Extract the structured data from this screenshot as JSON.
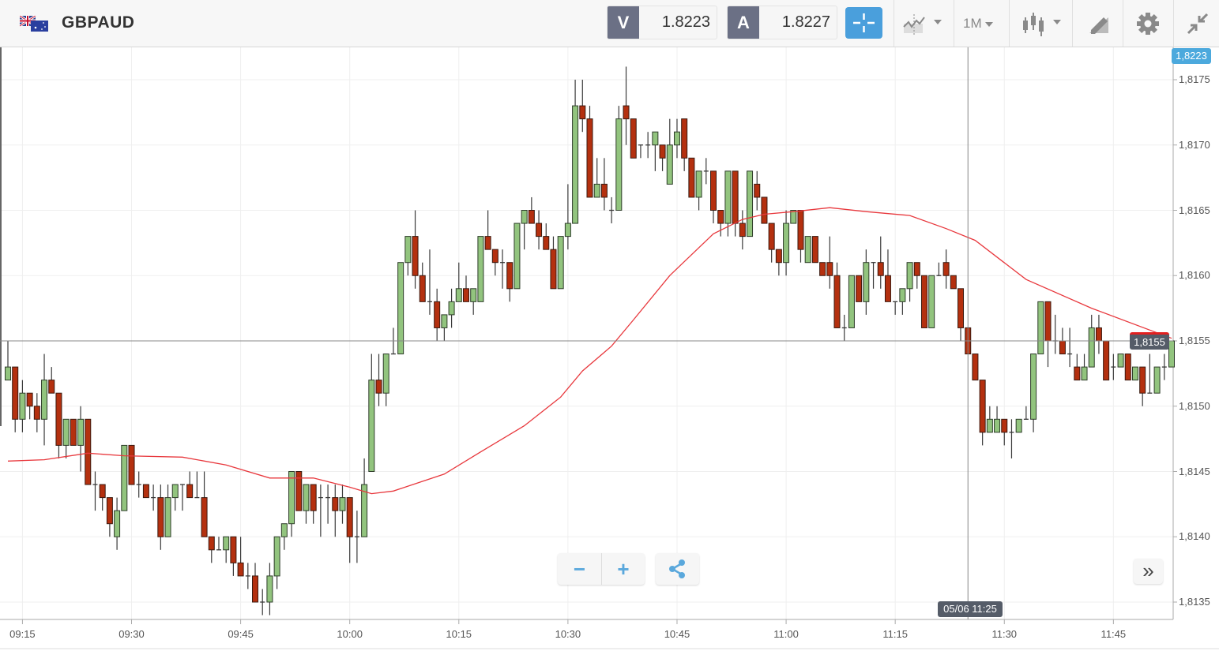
{
  "header": {
    "symbol": "GBPAUD",
    "sell_label": "V",
    "sell_price": "1.8223",
    "buy_label": "A",
    "buy_price": "1.8227",
    "timeframe": "1M",
    "icons": [
      "flag-gb-au-icon",
      "crosshair-icon",
      "indicators-icon",
      "timeframe-dropdown",
      "candlestick-type-icon",
      "drawing-tools-icon",
      "gear-icon",
      "collapse-icon"
    ]
  },
  "colors": {
    "up": "#92c47e",
    "down": "#b4300f",
    "ma": "#e8383d",
    "accent": "#4a9fdc",
    "tag_dark": "#555c68"
  },
  "overlay": {
    "top_price_tag": "1,8223",
    "current_price_tag": "1,8155",
    "crosshair_time_tag": "05/06 11:25",
    "zoom_out": "−",
    "zoom_in": "+",
    "share_icon": "share-icon",
    "scroll_right": "»"
  },
  "chart_data": {
    "type": "candlestick",
    "title": "GBPAUD",
    "interval": "1M",
    "first_candle_time": "09:13",
    "ylim": [
      1.81335,
      1.81795
    ],
    "y_ticks": [
      {
        "value": 1.8175,
        "label": "1,8175"
      },
      {
        "value": 1.817,
        "label": "1,8170"
      },
      {
        "value": 1.8165,
        "label": "1,8165"
      },
      {
        "value": 1.816,
        "label": "1,8160"
      },
      {
        "value": 1.8155,
        "label": "1,8155"
      },
      {
        "value": 1.815,
        "label": "1,8150"
      },
      {
        "value": 1.8145,
        "label": "1,8145"
      },
      {
        "value": 1.814,
        "label": "1,8140"
      },
      {
        "value": 1.8135,
        "label": "1,8135"
      }
    ],
    "x_ticks": [
      {
        "minute": 2,
        "label": "09:15"
      },
      {
        "minute": 17,
        "label": "09:30"
      },
      {
        "minute": 32,
        "label": "09:45"
      },
      {
        "minute": 47,
        "label": "10:00"
      },
      {
        "minute": 62,
        "label": "10:15"
      },
      {
        "minute": 77,
        "label": "10:30"
      },
      {
        "minute": 92,
        "label": "10:45"
      },
      {
        "minute": 107,
        "label": "11:00"
      },
      {
        "minute": 122,
        "label": "11:15"
      },
      {
        "minute": 137,
        "label": "11:30"
      },
      {
        "minute": 152,
        "label": "11:45"
      }
    ],
    "crosshair": {
      "minute": 132,
      "price": 1.8155
    },
    "ohlc": [
      [
        1.8152,
        1.8155,
        1.8152,
        1.8153
      ],
      [
        1.8153,
        1.8153,
        1.8148,
        1.8149
      ],
      [
        1.8149,
        1.8152,
        1.8148,
        1.8151
      ],
      [
        1.8151,
        1.8151,
        1.8149,
        1.815
      ],
      [
        1.815,
        1.8151,
        1.8148,
        1.8149
      ],
      [
        1.8149,
        1.8154,
        1.8147,
        1.8152
      ],
      [
        1.8152,
        1.8153,
        1.8151,
        1.8151
      ],
      [
        1.8151,
        1.8151,
        1.8146,
        1.8147
      ],
      [
        1.8147,
        1.8149,
        1.8146,
        1.8149
      ],
      [
        1.8149,
        1.8149,
        1.8147,
        1.8147
      ],
      [
        1.8147,
        1.815,
        1.8145,
        1.8149
      ],
      [
        1.8149,
        1.8149,
        1.8144,
        1.8144
      ],
      [
        1.8144,
        1.8145,
        1.8142,
        1.8144
      ],
      [
        1.8144,
        1.8144,
        1.8142,
        1.8143
      ],
      [
        1.8143,
        1.8143,
        1.814,
        1.8141
      ],
      [
        1.814,
        1.8143,
        1.8139,
        1.8142
      ],
      [
        1.8142,
        1.8147,
        1.8142,
        1.8147
      ],
      [
        1.8147,
        1.8147,
        1.8144,
        1.8144
      ],
      [
        1.8144,
        1.8145,
        1.8143,
        1.8144
      ],
      [
        1.8144,
        1.8144,
        1.8143,
        1.8143
      ],
      [
        1.8143,
        1.8144,
        1.8142,
        1.8143
      ],
      [
        1.8143,
        1.8144,
        1.8139,
        1.814
      ],
      [
        1.814,
        1.8144,
        1.814,
        1.8143
      ],
      [
        1.8143,
        1.8144,
        1.8142,
        1.8144
      ],
      [
        1.8144,
        1.8144,
        1.8142,
        1.8144
      ],
      [
        1.8144,
        1.8145,
        1.8143,
        1.8143
      ],
      [
        1.8143,
        1.8145,
        1.8143,
        1.8143
      ],
      [
        1.8143,
        1.8145,
        1.814,
        1.814
      ],
      [
        1.814,
        1.814,
        1.8138,
        1.8139
      ],
      [
        1.8139,
        1.814,
        1.8139,
        1.8139
      ],
      [
        1.8139,
        1.814,
        1.8138,
        1.814
      ],
      [
        1.814,
        1.814,
        1.8137,
        1.8138
      ],
      [
        1.8138,
        1.814,
        1.8137,
        1.8137
      ],
      [
        1.8137,
        1.8138,
        1.8136,
        1.8137
      ],
      [
        1.8137,
        1.8138,
        1.8135,
        1.8135
      ],
      [
        1.8135,
        1.8136,
        1.8134,
        1.8135
      ],
      [
        1.8135,
        1.8138,
        1.8134,
        1.8137
      ],
      [
        1.8137,
        1.814,
        1.8136,
        1.814
      ],
      [
        1.814,
        1.8141,
        1.8139,
        1.8141
      ],
      [
        1.8141,
        1.8145,
        1.814,
        1.8145
      ],
      [
        1.8145,
        1.8145,
        1.8142,
        1.8142
      ],
      [
        1.8142,
        1.8144,
        1.8141,
        1.8144
      ],
      [
        1.8144,
        1.8144,
        1.8141,
        1.8142
      ],
      [
        1.8143,
        1.8144,
        1.814,
        1.8143
      ],
      [
        1.8143,
        1.8144,
        1.8141,
        1.8143
      ],
      [
        1.8143,
        1.8144,
        1.814,
        1.8142
      ],
      [
        1.8142,
        1.8144,
        1.8141,
        1.8143
      ],
      [
        1.8143,
        1.8143,
        1.8138,
        1.814
      ],
      [
        1.814,
        1.8142,
        1.8138,
        1.814
      ],
      [
        1.814,
        1.8146,
        1.814,
        1.8144
      ],
      [
        1.8145,
        1.8154,
        1.8145,
        1.8152
      ],
      [
        1.8152,
        1.8154,
        1.815,
        1.8151
      ],
      [
        1.8151,
        1.8154,
        1.815,
        1.8154
      ],
      [
        1.8154,
        1.8156,
        1.8154,
        1.8154
      ],
      [
        1.8154,
        1.8161,
        1.8154,
        1.8161
      ],
      [
        1.8161,
        1.8163,
        1.816,
        1.8163
      ],
      [
        1.8163,
        1.8165,
        1.8159,
        1.816
      ],
      [
        1.816,
        1.8161,
        1.8158,
        1.8158
      ],
      [
        1.8158,
        1.8162,
        1.8157,
        1.8158
      ],
      [
        1.8158,
        1.8159,
        1.8155,
        1.8156
      ],
      [
        1.8156,
        1.8157,
        1.8155,
        1.8157
      ],
      [
        1.8157,
        1.8159,
        1.8156,
        1.8158
      ],
      [
        1.8158,
        1.8161,
        1.8158,
        1.8159
      ],
      [
        1.8159,
        1.816,
        1.8158,
        1.8158
      ],
      [
        1.8158,
        1.8159,
        1.8157,
        1.8159
      ],
      [
        1.8158,
        1.8163,
        1.8158,
        1.8163
      ],
      [
        1.8163,
        1.8165,
        1.8162,
        1.8162
      ],
      [
        1.8162,
        1.8162,
        1.816,
        1.8161
      ],
      [
        1.8161,
        1.8162,
        1.8159,
        1.8161
      ],
      [
        1.8161,
        1.8161,
        1.8158,
        1.8159
      ],
      [
        1.8159,
        1.8164,
        1.8159,
        1.8164
      ],
      [
        1.8164,
        1.8165,
        1.8162,
        1.8165
      ],
      [
        1.8165,
        1.8166,
        1.8164,
        1.8164
      ],
      [
        1.8164,
        1.8165,
        1.8162,
        1.8163
      ],
      [
        1.8163,
        1.8164,
        1.8162,
        1.8162
      ],
      [
        1.8162,
        1.8163,
        1.8159,
        1.8159
      ],
      [
        1.8159,
        1.8163,
        1.8159,
        1.8163
      ],
      [
        1.8163,
        1.8167,
        1.8162,
        1.8164
      ],
      [
        1.8164,
        1.8175,
        1.8164,
        1.8173
      ],
      [
        1.8173,
        1.8175,
        1.8171,
        1.8172
      ],
      [
        1.8172,
        1.8173,
        1.8166,
        1.8166
      ],
      [
        1.8166,
        1.8169,
        1.8166,
        1.8167
      ],
      [
        1.8167,
        1.8169,
        1.8165,
        1.8166
      ],
      [
        1.8165,
        1.8166,
        1.8164,
        1.8165
      ],
      [
        1.8165,
        1.8173,
        1.8165,
        1.8172
      ],
      [
        1.8173,
        1.8176,
        1.817,
        1.8172
      ],
      [
        1.8172,
        1.8172,
        1.8169,
        1.8169
      ],
      [
        1.817,
        1.817,
        1.8169,
        1.817
      ],
      [
        1.817,
        1.8171,
        1.8169,
        1.817
      ],
      [
        1.817,
        1.8171,
        1.8168,
        1.8171
      ],
      [
        1.817,
        1.817,
        1.8168,
        1.8169
      ],
      [
        1.8167,
        1.8172,
        1.8167,
        1.817
      ],
      [
        1.817,
        1.8172,
        1.8169,
        1.8171
      ],
      [
        1.8172,
        1.8172,
        1.8168,
        1.8169
      ],
      [
        1.8169,
        1.8169,
        1.8166,
        1.8166
      ],
      [
        1.8166,
        1.8168,
        1.8165,
        1.8168
      ],
      [
        1.8168,
        1.8169,
        1.8167,
        1.8168
      ],
      [
        1.8168,
        1.8168,
        1.8164,
        1.8165
      ],
      [
        1.8165,
        1.8165,
        1.8163,
        1.8164
      ],
      [
        1.8164,
        1.8168,
        1.8163,
        1.8168
      ],
      [
        1.8168,
        1.8168,
        1.8163,
        1.8164
      ],
      [
        1.8164,
        1.8165,
        1.8162,
        1.8163
      ],
      [
        1.8163,
        1.8168,
        1.8163,
        1.8168
      ],
      [
        1.8167,
        1.8168,
        1.8165,
        1.8166
      ],
      [
        1.8166,
        1.8166,
        1.8164,
        1.8164
      ],
      [
        1.8164,
        1.8164,
        1.8161,
        1.8162
      ],
      [
        1.8162,
        1.8162,
        1.816,
        1.8161
      ],
      [
        1.8161,
        1.8165,
        1.816,
        1.8164
      ],
      [
        1.8164,
        1.8165,
        1.8164,
        1.8165
      ],
      [
        1.8165,
        1.8165,
        1.8161,
        1.8162
      ],
      [
        1.8161,
        1.8163,
        1.8161,
        1.8163
      ],
      [
        1.8163,
        1.8163,
        1.8161,
        1.8161
      ],
      [
        1.8161,
        1.8161,
        1.816,
        1.816
      ],
      [
        1.8161,
        1.8163,
        1.8159,
        1.816
      ],
      [
        1.816,
        1.8161,
        1.8156,
        1.8156
      ],
      [
        1.8156,
        1.8157,
        1.8155,
        1.8156
      ],
      [
        1.8156,
        1.816,
        1.8156,
        1.816
      ],
      [
        1.816,
        1.816,
        1.8158,
        1.8158
      ],
      [
        1.8158,
        1.8162,
        1.8157,
        1.8161
      ],
      [
        1.8161,
        1.8161,
        1.8159,
        1.8161
      ],
      [
        1.8161,
        1.8163,
        1.8159,
        1.816
      ],
      [
        1.816,
        1.8162,
        1.8158,
        1.8158
      ],
      [
        1.8158,
        1.8158,
        1.8157,
        1.8158
      ],
      [
        1.8158,
        1.8159,
        1.8157,
        1.8159
      ],
      [
        1.8159,
        1.8161,
        1.8158,
        1.8161
      ],
      [
        1.8161,
        1.8161,
        1.8159,
        1.816
      ],
      [
        1.816,
        1.816,
        1.8156,
        1.8156
      ],
      [
        1.8156,
        1.816,
        1.8156,
        1.816
      ],
      [
        1.816,
        1.8161,
        1.816,
        1.816
      ],
      [
        1.8161,
        1.8162,
        1.8159,
        1.816
      ],
      [
        1.816,
        1.816,
        1.8159,
        1.8159
      ],
      [
        1.8159,
        1.8159,
        1.8155,
        1.8156
      ],
      [
        1.8156,
        1.8156,
        1.8154,
        1.8154
      ],
      [
        1.8154,
        1.8154,
        1.8152,
        1.8152
      ],
      [
        1.8152,
        1.8152,
        1.8147,
        1.8148
      ],
      [
        1.8148,
        1.815,
        1.8148,
        1.8149
      ],
      [
        1.8148,
        1.815,
        1.8148,
        1.8149
      ],
      [
        1.8149,
        1.8149,
        1.8147,
        1.8148
      ],
      [
        1.8148,
        1.8149,
        1.8146,
        1.8148
      ],
      [
        1.8148,
        1.8149,
        1.8148,
        1.8149
      ],
      [
        1.8149,
        1.815,
        1.8149,
        1.8149
      ],
      [
        1.8149,
        1.8154,
        1.8148,
        1.8154
      ],
      [
        1.8154,
        1.8158,
        1.8154,
        1.8158
      ],
      [
        1.8158,
        1.8158,
        1.8153,
        1.8155
      ],
      [
        1.8155,
        1.8157,
        1.8154,
        1.8155
      ],
      [
        1.8155,
        1.8156,
        1.8154,
        1.8154
      ],
      [
        1.8154,
        1.8156,
        1.8153,
        1.8154
      ],
      [
        1.8153,
        1.8154,
        1.8152,
        1.8152
      ],
      [
        1.8152,
        1.8154,
        1.8152,
        1.8153
      ],
      [
        1.8153,
        1.8157,
        1.8153,
        1.8156
      ],
      [
        1.8156,
        1.8157,
        1.8154,
        1.8155
      ],
      [
        1.8155,
        1.8155,
        1.8152,
        1.8152
      ],
      [
        1.8153,
        1.8154,
        1.8152,
        1.8153
      ],
      [
        1.8153,
        1.8154,
        1.8153,
        1.8154
      ],
      [
        1.8154,
        1.8154,
        1.8152,
        1.8152
      ],
      [
        1.8152,
        1.8153,
        1.8152,
        1.8153
      ],
      [
        1.8153,
        1.8153,
        1.815,
        1.8151
      ],
      [
        1.8151,
        1.8154,
        1.8151,
        1.8151
      ],
      [
        1.8151,
        1.8153,
        1.8151,
        1.8153
      ],
      [
        1.8153,
        1.8154,
        1.8152,
        1.8153
      ],
      [
        1.8153,
        1.8155,
        1.8153,
        1.8155
      ]
    ],
    "moving_average": [
      [
        0,
        1.81458
      ],
      [
        5,
        1.81459
      ],
      [
        11,
        1.81464
      ],
      [
        16,
        1.81462
      ],
      [
        24,
        1.81461
      ],
      [
        30,
        1.81455
      ],
      [
        36,
        1.81445
      ],
      [
        42,
        1.81445
      ],
      [
        47,
        1.81438
      ],
      [
        50,
        1.81433
      ],
      [
        53,
        1.81435
      ],
      [
        60,
        1.81448
      ],
      [
        65,
        1.81465
      ],
      [
        71,
        1.81485
      ],
      [
        76,
        1.81507
      ],
      [
        79,
        1.81527
      ],
      [
        83,
        1.81546
      ],
      [
        86,
        1.81566
      ],
      [
        91,
        1.816
      ],
      [
        97,
        1.81632
      ],
      [
        101,
        1.81643
      ],
      [
        104,
        1.81647
      ],
      [
        108,
        1.81649
      ],
      [
        113,
        1.81652
      ],
      [
        118,
        1.81649
      ],
      [
        124,
        1.81646
      ],
      [
        129,
        1.81636
      ],
      [
        133,
        1.81627
      ],
      [
        140,
        1.81597
      ],
      [
        149,
        1.81575
      ],
      [
        160,
        1.81552
      ]
    ]
  }
}
